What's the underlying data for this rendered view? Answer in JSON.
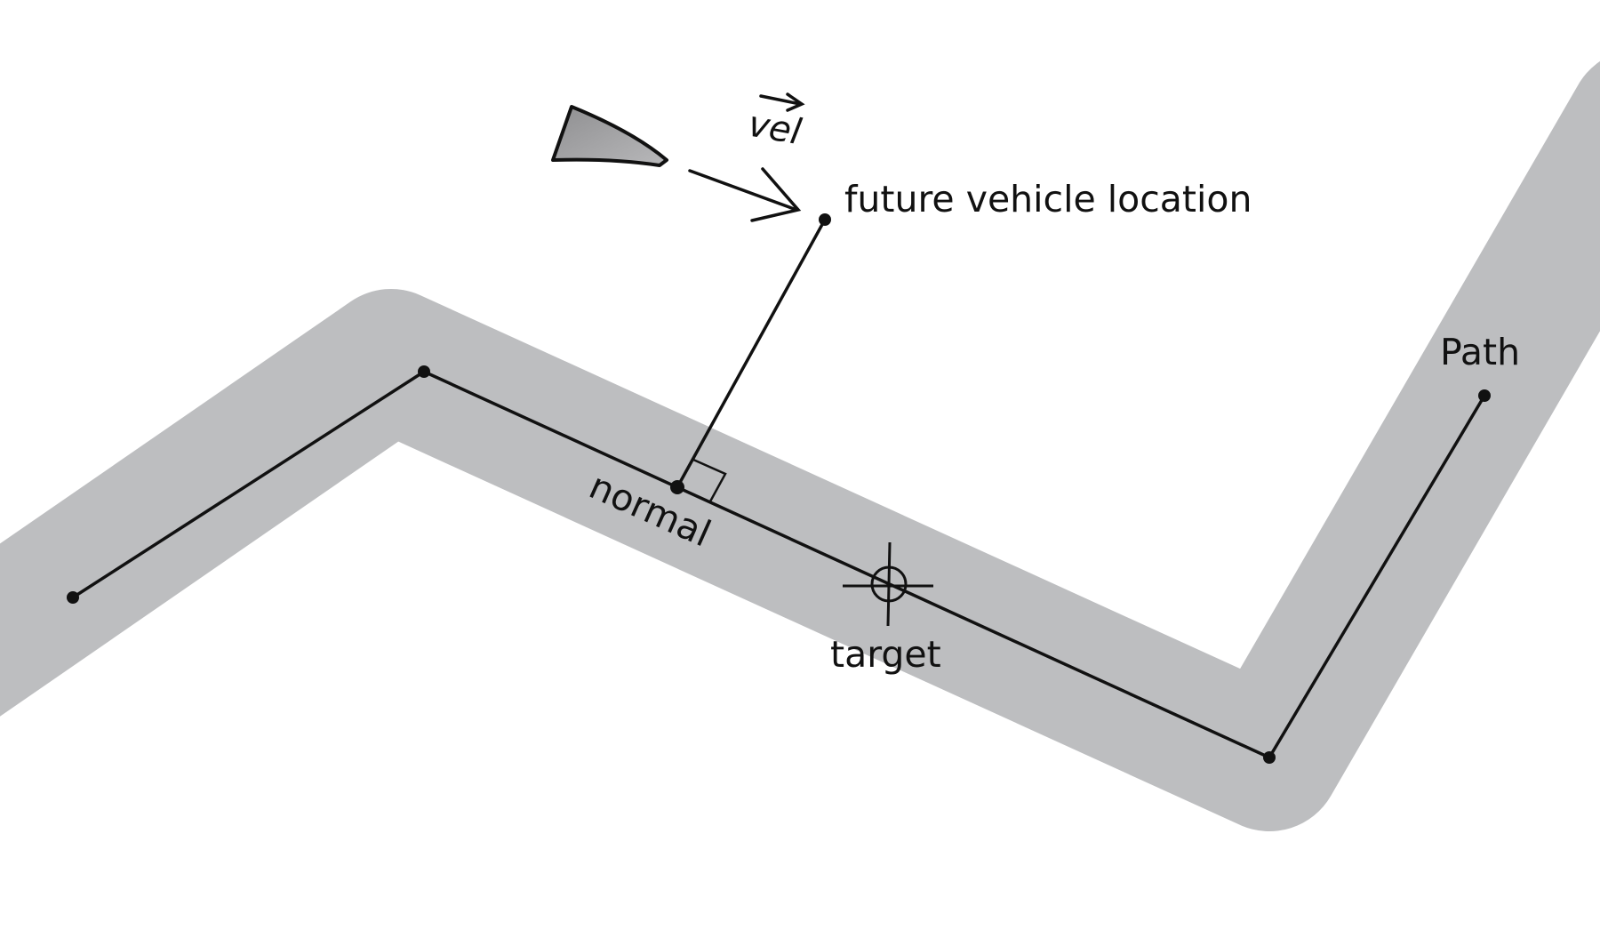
{
  "labels": {
    "velocity": "vel",
    "future_location": "future vehicle location",
    "normal": "normal",
    "target": "target",
    "path": "Path"
  },
  "colors": {
    "background": "#ffffff",
    "path_band": "#bdbec0",
    "ink": "#111111",
    "vehicle_fill": "#8f8f91",
    "vehicle_fill_light": "#b8b8ba"
  },
  "icons": {
    "vehicle": "vehicle-icon",
    "target": "crosshair-target-icon",
    "right_angle": "right-angle-marker-icon"
  }
}
